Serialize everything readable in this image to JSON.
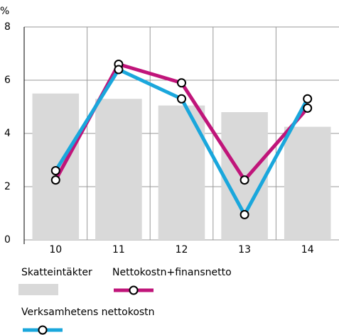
{
  "chart_data": {
    "type": "bar",
    "ylabel": "%",
    "categories": [
      "10",
      "11",
      "12",
      "13",
      "14"
    ],
    "ylim": [
      0,
      8
    ],
    "yticks": [
      0,
      2,
      4,
      6,
      8
    ],
    "grid": true,
    "series": [
      {
        "name": "Skatteintäkter",
        "type": "bar",
        "color": "#d9d9d9",
        "values": [
          5.5,
          5.3,
          5.05,
          4.8,
          4.25
        ]
      },
      {
        "name": "Nettokostn+finansnetto",
        "type": "line",
        "color": "#c0157a",
        "values": [
          2.25,
          6.6,
          5.9,
          2.25,
          4.95
        ]
      },
      {
        "name": "Verksamhetens nettokostn",
        "type": "line",
        "color": "#1aa7dc",
        "values": [
          2.6,
          6.4,
          5.3,
          0.95,
          5.3
        ]
      }
    ]
  }
}
